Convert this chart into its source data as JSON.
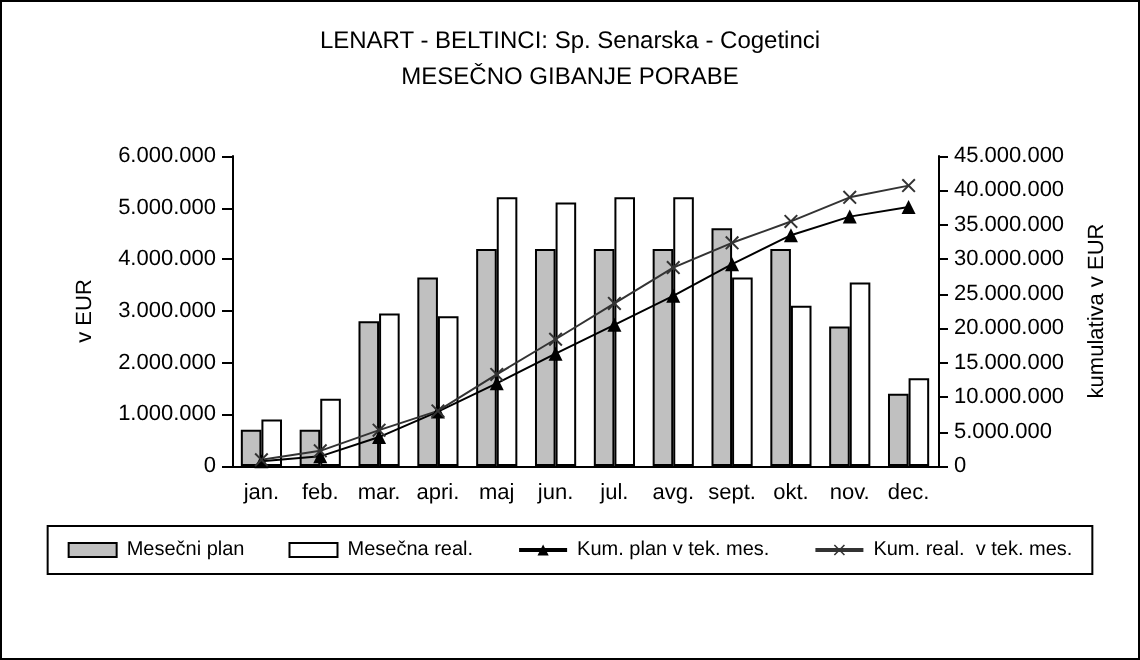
{
  "chart_data": {
    "type": "bar",
    "title": "LENART - BELTINCI: Sp. Senarska - Cogetinci",
    "subtitle": "MESEČNO GIBANJE PORABE",
    "ylabel": "v EUR",
    "y2label": "kumulativa v EUR",
    "categories": [
      "jan.",
      "feb.",
      "mar.",
      "apri.",
      "maj",
      "jun.",
      "jul.",
      "avg.",
      "sept.",
      "okt.",
      "nov.",
      "dec."
    ],
    "series": [
      {
        "name": "Mesečni plan",
        "color": "#c0c0c0",
        "values": [
          700000,
          700000,
          2800000,
          3650000,
          4200000,
          4200000,
          4200000,
          4200000,
          4600000,
          4200000,
          2700000,
          1400000
        ]
      },
      {
        "name": "Mesečna real.",
        "color": "#ffffff",
        "values": [
          900000,
          1300000,
          2950000,
          2900000,
          5200000,
          5100000,
          5200000,
          5200000,
          3650000,
          3100000,
          3550000,
          1700000
        ]
      },
      {
        "name": "Kum. plan v tek. mes.",
        "type": "line",
        "axis": "y2",
        "marker": "triangle",
        "color": "#000000",
        "values": [
          700000,
          1400000,
          4200000,
          7900000,
          12000000,
          16300000,
          20500000,
          24700000,
          29300000,
          33500000,
          36200000,
          37600000
        ]
      },
      {
        "name": "Kum. real.  v tek. mes.",
        "type": "line",
        "axis": "y2",
        "marker": "cross",
        "color": "#333333",
        "values": [
          900000,
          2200000,
          5200000,
          8000000,
          13300000,
          18400000,
          23600000,
          28800000,
          32400000,
          35500000,
          39000000,
          40700000
        ]
      }
    ],
    "ylim": [
      0,
      6000000
    ],
    "yticks": [
      {
        "value": 0,
        "label": "0"
      },
      {
        "value": 1000000,
        "label": "1.000.000"
      },
      {
        "value": 2000000,
        "label": "2.000.000"
      },
      {
        "value": 3000000,
        "label": "3.000.000"
      },
      {
        "value": 4000000,
        "label": "4.000.000"
      },
      {
        "value": 5000000,
        "label": "5.000.000"
      },
      {
        "value": 6000000,
        "label": "6.000.000"
      }
    ],
    "y2lim": [
      0,
      45000000
    ],
    "y2ticks": [
      {
        "value": 0,
        "label": "0"
      },
      {
        "value": 5000000,
        "label": "5.000.000"
      },
      {
        "value": 10000000,
        "label": "10.000.000"
      },
      {
        "value": 15000000,
        "label": "15.000.000"
      },
      {
        "value": 20000000,
        "label": "20.000.000"
      },
      {
        "value": 25000000,
        "label": "25.000.000"
      },
      {
        "value": 30000000,
        "label": "30.000.000"
      },
      {
        "value": 35000000,
        "label": "35.000.000"
      },
      {
        "value": 40000000,
        "label": "40.000.000"
      },
      {
        "value": 45000000,
        "label": "45.000.000"
      }
    ],
    "grid": false,
    "legend": "bottom"
  }
}
